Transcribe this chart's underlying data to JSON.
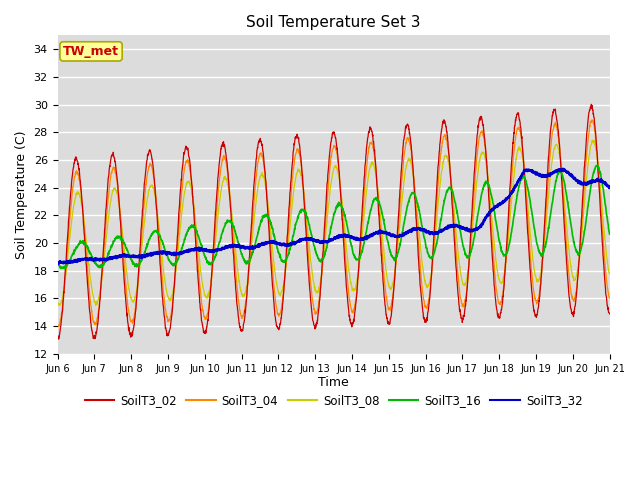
{
  "title": "Soil Temperature Set 3",
  "xlabel": "Time",
  "ylabel": "Soil Temperature (C)",
  "ylim": [
    12,
    35
  ],
  "yticks": [
    12,
    14,
    16,
    18,
    20,
    22,
    24,
    26,
    28,
    30,
    32,
    34
  ],
  "plot_bg_color": "#dcdcdc",
  "series_colors": {
    "SoilT3_02": "#cc0000",
    "SoilT3_04": "#ff8800",
    "SoilT3_08": "#cccc00",
    "SoilT3_16": "#00bb00",
    "SoilT3_32": "#0000cc"
  },
  "annotation_text": "TW_met",
  "annotation_color": "#cc0000",
  "annotation_bg": "#ffff99",
  "x_tick_labels": [
    "Jun 6",
    "Jun 7",
    "Jun 8",
    "Jun 9",
    "Jun 10",
    "Jun 11",
    "Jun 12",
    "Jun 13",
    "Jun 14",
    "Jun 15",
    "Jun 16",
    "Jun 17",
    "Jun 18",
    "Jun 19",
    "Jun 20",
    "Jun 21"
  ],
  "n_days": 15,
  "samples_per_day": 144
}
